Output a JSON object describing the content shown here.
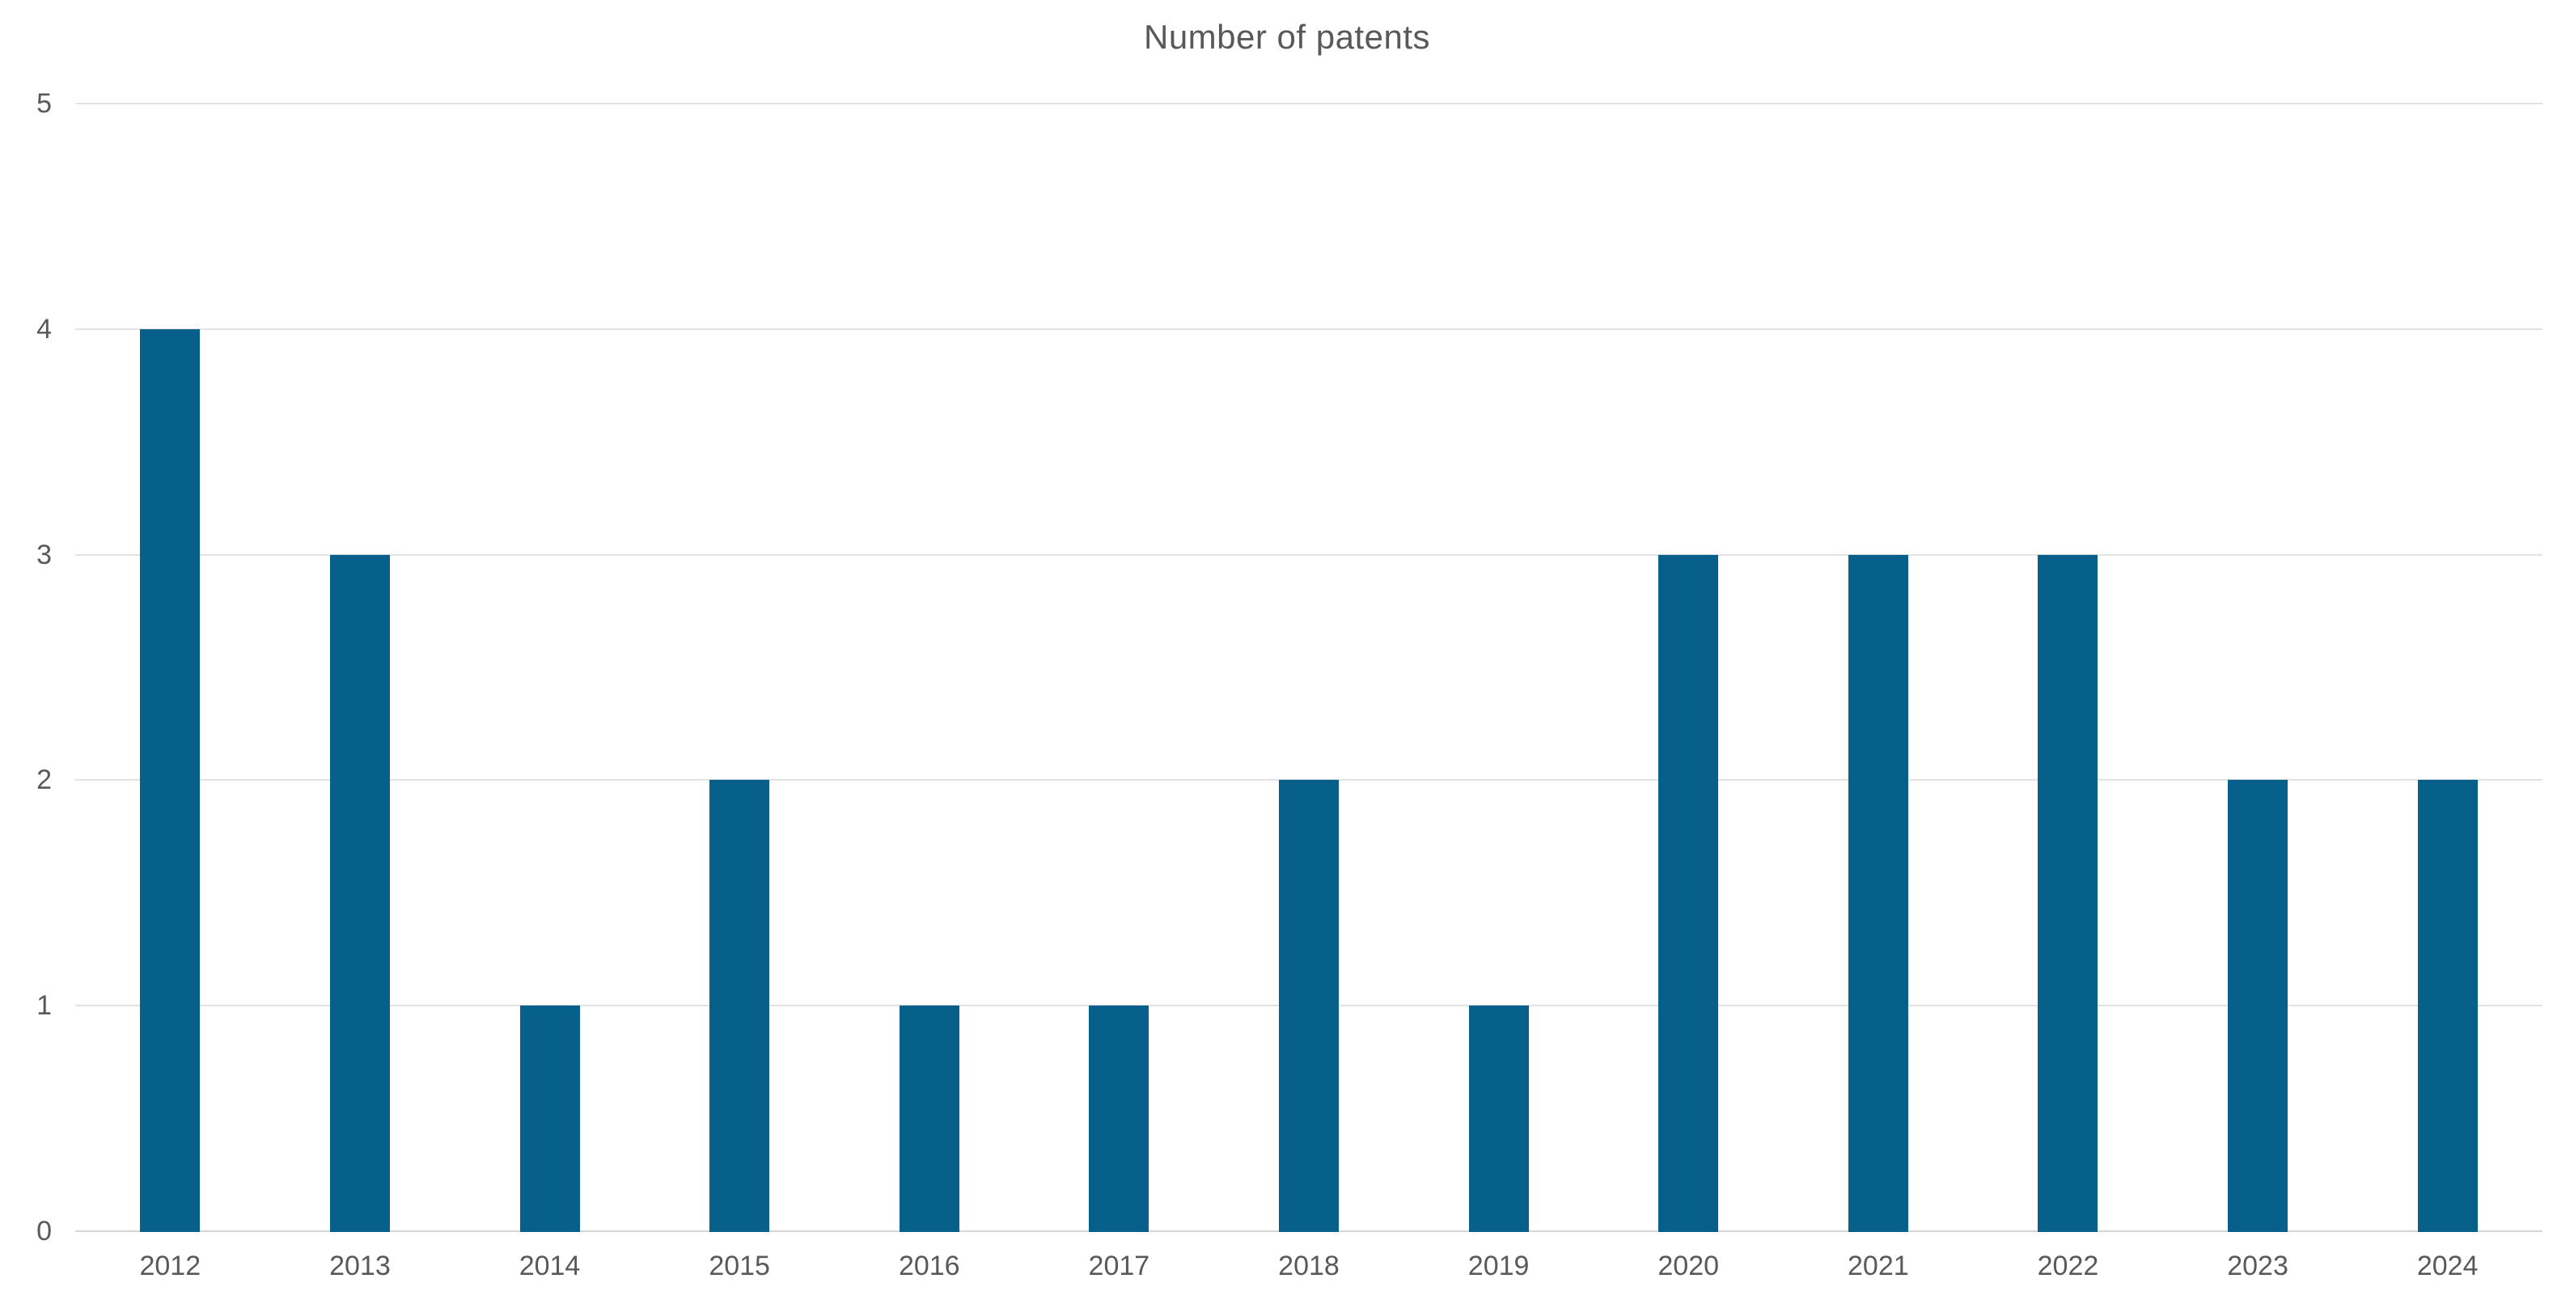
{
  "chart_data": {
    "type": "bar",
    "title": "Number of patents",
    "categories": [
      "2012",
      "2013",
      "2014",
      "2015",
      "2016",
      "2017",
      "2018",
      "2019",
      "2020",
      "2021",
      "2022",
      "2023",
      "2024"
    ],
    "values": [
      4,
      3,
      1,
      2,
      1,
      1,
      2,
      1,
      3,
      3,
      3,
      2,
      2
    ],
    "xlabel": "",
    "ylabel": "",
    "ylim": [
      0,
      5
    ],
    "yticks": [
      0,
      1,
      2,
      3,
      4,
      5
    ],
    "grid": true,
    "legend": false,
    "colors": {
      "bar": "#07608a",
      "title_text": "#595959",
      "tick_text": "#595959",
      "gridline": "#e2e2e2",
      "baseline": "#d6d6d6",
      "background": "#ffffff"
    }
  }
}
